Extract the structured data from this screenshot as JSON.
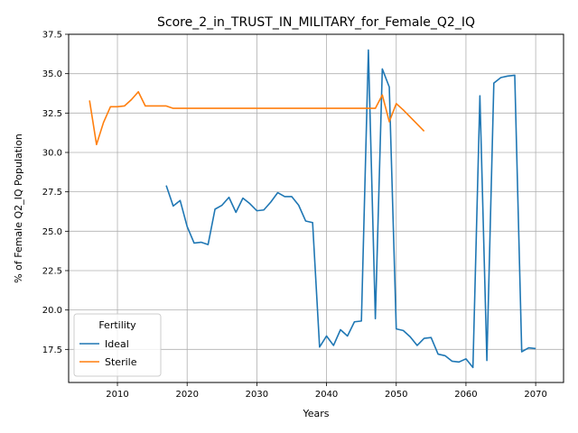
{
  "chart_data": {
    "type": "line",
    "title": "Score_2_in_TRUST_IN_MILITARY_for_Female_Q2_IQ",
    "xlabel": "Years",
    "ylabel": "% of Female Q2_IQ Population",
    "xlim": [
      2003,
      2074
    ],
    "ylim": [
      15.4,
      37.5
    ],
    "xticks": [
      2010,
      2020,
      2030,
      2040,
      2050,
      2060,
      2070
    ],
    "yticks": [
      17.5,
      20.0,
      22.5,
      25.0,
      27.5,
      30.0,
      32.5,
      35.0,
      37.5
    ],
    "ytick_labels": [
      "17.5",
      "20.0",
      "22.5",
      "25.0",
      "27.5",
      "30.0",
      "32.5",
      "35.0",
      "37.5"
    ],
    "grid": true,
    "legend": {
      "title": "Fertility",
      "placement": "lower-left"
    },
    "series": [
      {
        "name": "Ideal",
        "color": "#1f77b4",
        "points": [
          [
            2017,
            27.9
          ],
          [
            2018,
            26.6
          ],
          [
            2019,
            26.95
          ],
          [
            2020,
            25.3
          ],
          [
            2021,
            24.25
          ],
          [
            2022,
            24.3
          ],
          [
            2023,
            24.15
          ],
          [
            2024,
            26.4
          ],
          [
            2025,
            26.65
          ],
          [
            2026,
            27.15
          ],
          [
            2027,
            26.2
          ],
          [
            2028,
            27.1
          ],
          [
            2029,
            26.75
          ],
          [
            2030,
            26.3
          ],
          [
            2031,
            26.35
          ],
          [
            2032,
            26.85
          ],
          [
            2033,
            27.45
          ],
          [
            2034,
            27.2
          ],
          [
            2035,
            27.2
          ],
          [
            2036,
            26.65
          ],
          [
            2037,
            25.65
          ],
          [
            2038,
            25.55
          ],
          [
            2039,
            17.65
          ],
          [
            2040,
            18.35
          ],
          [
            2041,
            17.75
          ],
          [
            2042,
            18.75
          ],
          [
            2043,
            18.35
          ],
          [
            2044,
            19.25
          ],
          [
            2045,
            19.3
          ],
          [
            2046,
            36.5
          ],
          [
            2047,
            19.45
          ],
          [
            2048,
            35.3
          ],
          [
            2049,
            34.15
          ],
          [
            2050,
            18.8
          ],
          [
            2051,
            18.7
          ],
          [
            2052,
            18.3
          ],
          [
            2053,
            17.75
          ],
          [
            2054,
            18.2
          ],
          [
            2055,
            18.25
          ],
          [
            2056,
            17.2
          ],
          [
            2057,
            17.1
          ],
          [
            2058,
            16.75
          ],
          [
            2059,
            16.7
          ],
          [
            2060,
            16.9
          ],
          [
            2061,
            16.35
          ],
          [
            2062,
            33.6
          ],
          [
            2063,
            16.8
          ],
          [
            2064,
            34.4
          ],
          [
            2065,
            34.75
          ],
          [
            2066,
            34.85
          ],
          [
            2067,
            34.9
          ],
          [
            2068,
            17.35
          ],
          [
            2069,
            17.6
          ],
          [
            2070,
            17.55
          ]
        ]
      },
      {
        "name": "Sterile",
        "color": "#ff7f0e",
        "points": [
          [
            2006,
            33.3
          ],
          [
            2007,
            30.5
          ],
          [
            2008,
            31.9
          ],
          [
            2009,
            32.9
          ],
          [
            2010,
            32.9
          ],
          [
            2011,
            32.95
          ],
          [
            2012,
            33.35
          ],
          [
            2013,
            33.85
          ],
          [
            2014,
            32.95
          ],
          [
            2015,
            32.95
          ],
          [
            2016,
            32.95
          ],
          [
            2017,
            32.95
          ],
          [
            2018,
            32.8
          ],
          [
            2020,
            32.8
          ],
          [
            2025,
            32.8
          ],
          [
            2030,
            32.8
          ],
          [
            2035,
            32.8
          ],
          [
            2040,
            32.8
          ],
          [
            2045,
            32.8
          ],
          [
            2046,
            32.8
          ],
          [
            2047,
            32.8
          ],
          [
            2048,
            33.65
          ],
          [
            2049,
            31.95
          ],
          [
            2050,
            33.1
          ],
          [
            2051,
            32.7
          ],
          [
            2052,
            32.25
          ],
          [
            2053,
            31.8
          ],
          [
            2054,
            31.35
          ]
        ]
      }
    ]
  }
}
